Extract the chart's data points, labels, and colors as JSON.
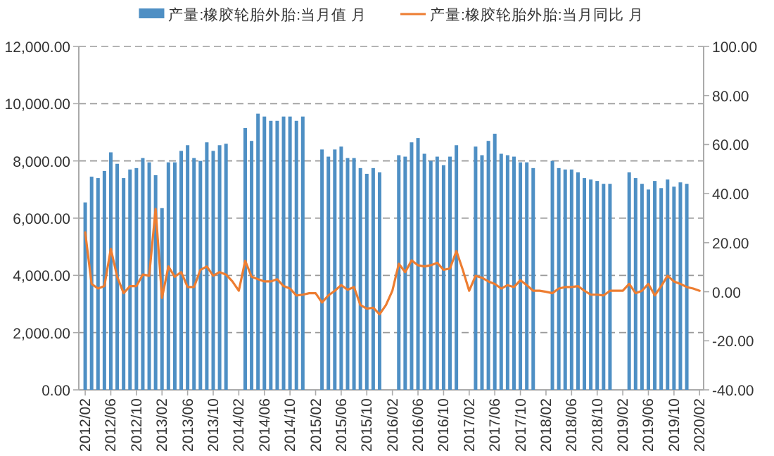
{
  "chart_data": {
    "type": "bar",
    "x": [
      "2012-02",
      "2012-03",
      "2012-04",
      "2012-05",
      "2012-06",
      "2012-07",
      "2012-08",
      "2012-09",
      "2012-10",
      "2012-11",
      "2012-12",
      "2013-01",
      "2013-02",
      "2013-03",
      "2013-04",
      "2013-05",
      "2013-06",
      "2013-07",
      "2013-08",
      "2013-09",
      "2013-10",
      "2013-11",
      "2013-12",
      "2014-01",
      "2014-02",
      "2014-03",
      "2014-04",
      "2014-05",
      "2014-06",
      "2014-07",
      "2014-08",
      "2014-09",
      "2014-10",
      "2014-11",
      "2014-12",
      "2015-01",
      "2015-02",
      "2015-03",
      "2015-04",
      "2015-05",
      "2015-06",
      "2015-07",
      "2015-08",
      "2015-09",
      "2015-10",
      "2015-11",
      "2015-12",
      "2016-01",
      "2016-02",
      "2016-03",
      "2016-04",
      "2016-05",
      "2016-06",
      "2016-07",
      "2016-08",
      "2016-09",
      "2016-10",
      "2016-11",
      "2016-12",
      "2017-01",
      "2017-02",
      "2017-03",
      "2017-04",
      "2017-05",
      "2017-06",
      "2017-07",
      "2017-08",
      "2017-09",
      "2017-10",
      "2017-11",
      "2017-12",
      "2018-01",
      "2018-02",
      "2018-03",
      "2018-04",
      "2018-05",
      "2018-06",
      "2018-07",
      "2018-08",
      "2018-09",
      "2018-10",
      "2018-11",
      "2018-12",
      "2019-01",
      "2019-02",
      "2019-03",
      "2019-04",
      "2019-05",
      "2019-06",
      "2019-07",
      "2019-08",
      "2019-09",
      "2019-10",
      "2019-11",
      "2019-12",
      "2020-01",
      "2020-02"
    ],
    "series": [
      {
        "name": "产量:橡胶轮胎外胎:当月值 月",
        "color": "#4e8fc4",
        "values": [
          6550,
          7450,
          7400,
          7650,
          8300,
          7900,
          7400,
          7700,
          7750,
          8100,
          7950,
          7500,
          6350,
          7950,
          7950,
          8350,
          8550,
          8100,
          8000,
          8650,
          8350,
          8550,
          8600,
          null,
          null,
          9150,
          8700,
          9650,
          9550,
          9400,
          9400,
          9550,
          9550,
          9400,
          9550,
          null,
          null,
          8400,
          8150,
          8400,
          8500,
          8100,
          8100,
          7750,
          7550,
          7750,
          7600,
          null,
          null,
          8200,
          8150,
          8650,
          8800,
          8250,
          8000,
          8150,
          7850,
          8150,
          8550,
          null,
          null,
          8500,
          8200,
          8700,
          8950,
          8250,
          8200,
          8150,
          7950,
          7950,
          7750,
          null,
          null,
          8000,
          7750,
          7700,
          7700,
          7600,
          7400,
          7350,
          7300,
          7200,
          7200,
          null,
          null,
          7600,
          7400,
          7200,
          7000,
          7300,
          7050,
          7350,
          7100,
          7250,
          7200,
          null,
          null
        ]
      },
      {
        "name": "产量:橡胶轮胎外胎:当月同比 月",
        "type": "line",
        "axis": "y2",
        "color": "#ed7d31",
        "values": [
          24.2,
          3.2,
          1.3,
          2.3,
          17.5,
          6.1,
          -0.6,
          2.3,
          2.3,
          7.0,
          6.5,
          33.8,
          -2.5,
          10.3,
          6.1,
          8.0,
          1.9,
          1.9,
          8.9,
          10.3,
          6.5,
          8.0,
          7.0,
          4.2,
          0.4,
          12.6,
          6.1,
          5.1,
          4.2,
          4.2,
          5.1,
          2.3,
          1.3,
          -1.5,
          -1.2,
          -0.6,
          -0.6,
          -4.4,
          -1.5,
          0.4,
          2.7,
          0.8,
          1.9,
          -5.4,
          -6.9,
          -6.5,
          -9.2,
          -5.4,
          0.4,
          11.4,
          8.0,
          12.8,
          10.8,
          10.3,
          10.8,
          11.8,
          8.9,
          9.5,
          16.6,
          8.9,
          0.4,
          6.5,
          5.7,
          4.2,
          3.2,
          1.3,
          2.7,
          1.9,
          4.7,
          2.7,
          0.4,
          0.4,
          0,
          -0.6,
          1.3,
          1.9,
          1.9,
          2.3,
          0.4,
          -1.2,
          -1.2,
          -1.5,
          0.4,
          0.4,
          0.4,
          3.2,
          -0.6,
          0.4,
          3.2,
          -1.5,
          2.3,
          6.5,
          4.2,
          3.2,
          1.9,
          1.3,
          0.4
        ]
      }
    ],
    "xlim": [
      "2012-01-01",
      "2020-02-20"
    ],
    "xticks": [
      {
        "value": "2012-02",
        "label": "2012/02"
      },
      {
        "value": "2012-06",
        "label": "2012/06"
      },
      {
        "value": "2012-10",
        "label": "2012/10"
      },
      {
        "value": "2013-02",
        "label": "2013/02"
      },
      {
        "value": "2013-06",
        "label": "2013/06"
      },
      {
        "value": "2013-10",
        "label": "2013/10"
      },
      {
        "value": "2014-02",
        "label": "2014/02"
      },
      {
        "value": "2014-06",
        "label": "2014/06"
      },
      {
        "value": "2014-10",
        "label": "2014/10"
      },
      {
        "value": "2015-02",
        "label": "2015/02"
      },
      {
        "value": "2015-06",
        "label": "2015/06"
      },
      {
        "value": "2015-10",
        "label": "2015/10"
      },
      {
        "value": "2016-02",
        "label": "2016/02"
      },
      {
        "value": "2016-06",
        "label": "2016/06"
      },
      {
        "value": "2016-10",
        "label": "2016/10"
      },
      {
        "value": "2017-02",
        "label": "2017/02"
      },
      {
        "value": "2017-06",
        "label": "2017/06"
      },
      {
        "value": "2017-10",
        "label": "2017/10"
      },
      {
        "value": "2018-02",
        "label": "2018/02"
      },
      {
        "value": "2018-06",
        "label": "2018/06"
      },
      {
        "value": "2018-10",
        "label": "2018/10"
      },
      {
        "value": "2019-02",
        "label": "2019/02"
      },
      {
        "value": "2019-06",
        "label": "2019/06"
      },
      {
        "value": "2019-10",
        "label": "2019/10"
      },
      {
        "value": "2020-02",
        "label": "2020/02"
      }
    ],
    "ylim": [
      0,
      12000
    ],
    "yticks": [
      {
        "value": 0,
        "label": "0.00"
      },
      {
        "value": 2000,
        "label": "2,000.00"
      },
      {
        "value": 4000,
        "label": "4,000.00"
      },
      {
        "value": 6000,
        "label": "6,000.00"
      },
      {
        "value": 8000,
        "label": "8,000.00"
      },
      {
        "value": 10000,
        "label": "10,000.00"
      },
      {
        "value": 12000,
        "label": "12,000.00"
      }
    ],
    "y2lim": [
      -40,
      100
    ],
    "y2ticks": [
      {
        "value": -40,
        "label": "-40.00"
      },
      {
        "value": -20,
        "label": "-20.00"
      },
      {
        "value": 0,
        "label": "0.00"
      },
      {
        "value": 20,
        "label": "20.00"
      },
      {
        "value": 40,
        "label": "40.00"
      },
      {
        "value": 60,
        "label": "60.00"
      },
      {
        "value": 80,
        "label": "80.00"
      },
      {
        "value": 100,
        "label": "100.00"
      }
    ],
    "grid": "y",
    "legend": "top"
  }
}
